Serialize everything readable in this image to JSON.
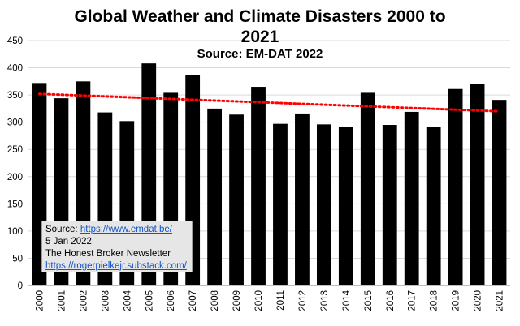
{
  "title_line1": "Global Weather and Climate Disasters 2000 to",
  "title_line2": "2021",
  "subtitle": "Source: EM-DAT 2022",
  "source_box": {
    "label": "Source: ",
    "url": "https://www.emdat.be/",
    "date": "5 Jan 2022",
    "newsletter": "The Honest Broker Newsletter",
    "substack": "https://rogerpielkejr.substack.com/"
  },
  "colors": {
    "bar": "#000000",
    "trend": "#ff0000",
    "grid": "#d9d9d9",
    "box_bg": "#e6e6e6",
    "link": "#1155cc"
  },
  "chart_data": {
    "type": "bar",
    "categories": [
      "2000",
      "2001",
      "2002",
      "2003",
      "2004",
      "2005",
      "2006",
      "2007",
      "2008",
      "2009",
      "2010",
      "2011",
      "2012",
      "2013",
      "2014",
      "2015",
      "2016",
      "2017",
      "2018",
      "2019",
      "2020",
      "2021"
    ],
    "values": [
      372,
      344,
      375,
      318,
      302,
      408,
      354,
      386,
      325,
      314,
      365,
      297,
      316,
      296,
      292,
      354,
      295,
      319,
      292,
      361,
      370,
      341
    ],
    "trendline": {
      "style": "dotted linear",
      "start": 352,
      "end": 320
    },
    "ylim": [
      0,
      450
    ],
    "yticks": [
      0,
      50,
      100,
      150,
      200,
      250,
      300,
      350,
      400,
      450
    ],
    "grid": true,
    "xlabel": "",
    "ylabel": ""
  }
}
